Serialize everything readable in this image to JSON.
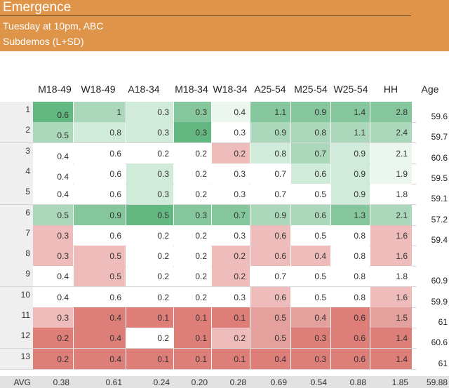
{
  "header": {
    "title": "Emergence",
    "subtitle1": "Tuesday at 10pm, ABC",
    "subtitle2": "Subdemos (L+SD)"
  },
  "columns": [
    "M18-49",
    "W18-49",
    "A18-34",
    "M18-34",
    "W18-34",
    "A25-54",
    "M25-54",
    "W25-54",
    "HH",
    "Age"
  ],
  "colors": {
    "header_bg": "#de9449",
    "g4": "#63b882",
    "g3": "#85c69c",
    "g2": "#abd8ba",
    "g1": "#d1ebda",
    "g0": "#eaf6ee",
    "r1": "#eebdbb",
    "r2": "#e4a09d",
    "r3": "#dd7e79"
  },
  "rows": [
    {
      "label": "1",
      "age": "59.6",
      "cells": [
        [
          "0.6",
          "g4"
        ],
        [
          "1",
          "g2"
        ],
        [
          "0.3",
          "g1"
        ],
        [
          "0.3",
          "g3"
        ],
        [
          "0.4",
          "g0"
        ],
        [
          "1.1",
          "g3"
        ],
        [
          "0.9",
          "g3"
        ],
        [
          "1.4",
          "g3"
        ],
        [
          "2.8",
          "g3"
        ]
      ]
    },
    {
      "label": "2",
      "age": "59.7",
      "cells": [
        [
          "0.5",
          "g2"
        ],
        [
          "0.8",
          "g1"
        ],
        [
          "0.3",
          "g1"
        ],
        [
          "0.3",
          "g4"
        ],
        [
          "0.3",
          "w"
        ],
        [
          "0.9",
          "g2"
        ],
        [
          "0.8",
          "g2"
        ],
        [
          "1.1",
          "g2"
        ],
        [
          "2.4",
          "g2"
        ]
      ]
    },
    {
      "label": "3",
      "age": "60.6",
      "cells": [
        [
          "0.4",
          "w"
        ],
        [
          "0.6",
          "w"
        ],
        [
          "0.2",
          "w"
        ],
        [
          "0.2",
          "w"
        ],
        [
          "0.2",
          "r1"
        ],
        [
          "0.8",
          "g1"
        ],
        [
          "0.7",
          "g2"
        ],
        [
          "0.9",
          "g1"
        ],
        [
          "2.1",
          "g0"
        ]
      ]
    },
    {
      "label": "4",
      "age": "59.5",
      "cells": [
        [
          "0.4",
          "w"
        ],
        [
          "0.6",
          "w"
        ],
        [
          "0.3",
          "g1"
        ],
        [
          "0.2",
          "w"
        ],
        [
          "0.3",
          "w"
        ],
        [
          "0.7",
          "w"
        ],
        [
          "0.6",
          "g1"
        ],
        [
          "0.9",
          "g1"
        ],
        [
          "1.9",
          "g0"
        ]
      ]
    },
    {
      "label": "5",
      "age": "59.1",
      "cells": [
        [
          "0.4",
          "w"
        ],
        [
          "0.6",
          "w"
        ],
        [
          "0.3",
          "g1"
        ],
        [
          "0.2",
          "w"
        ],
        [
          "0.3",
          "w"
        ],
        [
          "0.7",
          "w"
        ],
        [
          "0.5",
          "w"
        ],
        [
          "0.9",
          "g1"
        ],
        [
          "1.8",
          "w"
        ]
      ]
    },
    {
      "label": "6",
      "age": "57.2",
      "cells": [
        [
          "0.5",
          "g2"
        ],
        [
          "0.9",
          "g3"
        ],
        [
          "0.5",
          "g4"
        ],
        [
          "0.3",
          "g3"
        ],
        [
          "0.7",
          "g3"
        ],
        [
          "0.9",
          "g2"
        ],
        [
          "0.6",
          "g2"
        ],
        [
          "1.3",
          "g3"
        ],
        [
          "2.1",
          "g2"
        ]
      ]
    },
    {
      "label": "7",
      "age": "59.4",
      "cells": [
        [
          "0.3",
          "r1"
        ],
        [
          "0.6",
          "w"
        ],
        [
          "0.2",
          "w"
        ],
        [
          "0.2",
          "w"
        ],
        [
          "0.3",
          "w"
        ],
        [
          "0.6",
          "r1"
        ],
        [
          "0.5",
          "w"
        ],
        [
          "0.8",
          "w"
        ],
        [
          "1.6",
          "r1"
        ]
      ]
    },
    {
      "label": "8",
      "age": "",
      "cells": [
        [
          "0.3",
          "r1"
        ],
        [
          "0.5",
          "r1"
        ],
        [
          "0.2",
          "w"
        ],
        [
          "0.2",
          "w"
        ],
        [
          "0.2",
          "r1"
        ],
        [
          "0.6",
          "r1"
        ],
        [
          "0.4",
          "r1"
        ],
        [
          "0.8",
          "w"
        ],
        [
          "1.6",
          "r1"
        ]
      ]
    },
    {
      "label": "9",
      "age": "60.9",
      "cells": [
        [
          "0.4",
          "w"
        ],
        [
          "0.5",
          "r1"
        ],
        [
          "0.2",
          "w"
        ],
        [
          "0.2",
          "w"
        ],
        [
          "0.2",
          "r1"
        ],
        [
          "0.7",
          "w"
        ],
        [
          "0.5",
          "w"
        ],
        [
          "0.8",
          "w"
        ],
        [
          "1.8",
          "w"
        ]
      ]
    },
    {
      "label": "10",
      "age": "59.9",
      "cells": [
        [
          "0.4",
          "w"
        ],
        [
          "0.6",
          "w"
        ],
        [
          "0.2",
          "w"
        ],
        [
          "0.2",
          "w"
        ],
        [
          "0.3",
          "w"
        ],
        [
          "0.6",
          "r1"
        ],
        [
          "0.5",
          "w"
        ],
        [
          "0.8",
          "w"
        ],
        [
          "1.6",
          "r1"
        ]
      ]
    },
    {
      "label": "11",
      "age": "61",
      "cells": [
        [
          "0.3",
          "r1"
        ],
        [
          "0.4",
          "r3"
        ],
        [
          "0.1",
          "r3"
        ],
        [
          "0.1",
          "r3"
        ],
        [
          "0.1",
          "r3"
        ],
        [
          "0.5",
          "r2"
        ],
        [
          "0.4",
          "r2"
        ],
        [
          "0.6",
          "r3"
        ],
        [
          "1.5",
          "r2"
        ]
      ]
    },
    {
      "label": "12",
      "age": "60.6",
      "cells": [
        [
          "0.2",
          "r3"
        ],
        [
          "0.4",
          "r3"
        ],
        [
          "0.2",
          "w"
        ],
        [
          "0.1",
          "r3"
        ],
        [
          "0.2",
          "r1"
        ],
        [
          "0.5",
          "r2"
        ],
        [
          "0.3",
          "r3"
        ],
        [
          "0.6",
          "r3"
        ],
        [
          "1.4",
          "r3"
        ]
      ]
    },
    {
      "label": "13",
      "age": "61",
      "cells": [
        [
          "0.2",
          "r3"
        ],
        [
          "0.4",
          "r3"
        ],
        [
          "0.1",
          "r3"
        ],
        [
          "0.1",
          "r3"
        ],
        [
          "0.1",
          "r3"
        ],
        [
          "0.4",
          "r3"
        ],
        [
          "0.3",
          "r3"
        ],
        [
          "0.6",
          "r3"
        ],
        [
          "1.4",
          "r3"
        ]
      ]
    }
  ],
  "footer": {
    "label": "AVG",
    "values": [
      "0.38",
      "0.61",
      "0.24",
      "0.20",
      "0.28",
      "0.69",
      "0.54",
      "0.88",
      "1.85",
      "59.88"
    ]
  }
}
